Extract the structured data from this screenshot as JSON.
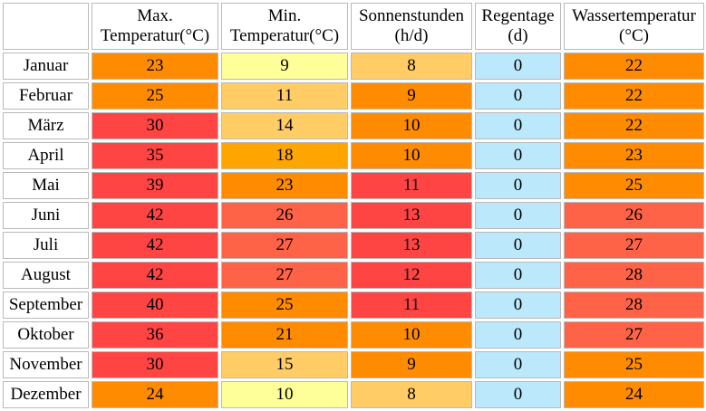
{
  "table": {
    "headers": {
      "max_temp": [
        "Max.",
        "Temperatur(°C)"
      ],
      "min_temp": [
        "Min.",
        "Temperatur(°C)"
      ],
      "sunshine": [
        "Sonnenstunden",
        "(h/d)"
      ],
      "rain_days": [
        "Regentage",
        "(d)"
      ],
      "water_temp": [
        "Wassertemperatur",
        "(°C)"
      ]
    },
    "rows": [
      {
        "month": "Januar",
        "max": "23",
        "min": "9",
        "sun": "8",
        "rain": "0",
        "water": "22"
      },
      {
        "month": "Februar",
        "max": "25",
        "min": "11",
        "sun": "9",
        "rain": "0",
        "water": "22"
      },
      {
        "month": "März",
        "max": "30",
        "min": "14",
        "sun": "10",
        "rain": "0",
        "water": "22"
      },
      {
        "month": "April",
        "max": "35",
        "min": "18",
        "sun": "10",
        "rain": "0",
        "water": "23"
      },
      {
        "month": "Mai",
        "max": "39",
        "min": "23",
        "sun": "11",
        "rain": "0",
        "water": "25"
      },
      {
        "month": "Juni",
        "max": "42",
        "min": "26",
        "sun": "13",
        "rain": "0",
        "water": "26"
      },
      {
        "month": "Juli",
        "max": "42",
        "min": "27",
        "sun": "13",
        "rain": "0",
        "water": "27"
      },
      {
        "month": "August",
        "max": "42",
        "min": "27",
        "sun": "12",
        "rain": "0",
        "water": "28"
      },
      {
        "month": "September",
        "max": "40",
        "min": "25",
        "sun": "11",
        "rain": "0",
        "water": "28"
      },
      {
        "month": "Oktober",
        "max": "36",
        "min": "21",
        "sun": "10",
        "rain": "0",
        "water": "27"
      },
      {
        "month": "November",
        "max": "30",
        "min": "15",
        "sun": "9",
        "rain": "0",
        "water": "25"
      },
      {
        "month": "Dezember",
        "max": "24",
        "min": "10",
        "sun": "8",
        "rain": "0",
        "water": "24"
      }
    ]
  },
  "colors": {
    "pale_yellow": "#ffff99",
    "light_orange": "#ffcc66",
    "amber": "#ffa500",
    "orange": "#ff8c00",
    "salmon": "#ff6347",
    "red": "#ff4444",
    "light_blue": "#bbe8fb",
    "border": "#b9b9b9"
  }
}
